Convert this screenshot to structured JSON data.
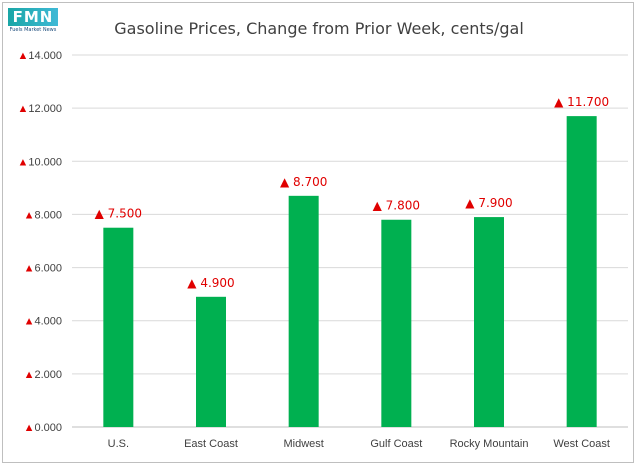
{
  "logo": {
    "letters": "FMN",
    "subtitle": "Fuels Market News"
  },
  "chart_data": {
    "type": "bar",
    "title": "Gasoline Prices, Change from Prior Week, cents/gal",
    "xlabel": "",
    "ylabel": "",
    "categories": [
      "U.S.",
      "East Coast",
      "Midwest",
      "Gulf Coast",
      "Rocky Mountain",
      "West Coast"
    ],
    "values": [
      7.5,
      4.9,
      8.7,
      7.8,
      7.9,
      11.7
    ],
    "data_labels": [
      "7.500",
      "4.900",
      "8.700",
      "7.800",
      "7.900",
      "11.700"
    ],
    "ylim": [
      0,
      14
    ],
    "yticks": [
      0,
      2,
      4,
      6,
      8,
      10,
      12,
      14
    ],
    "ytick_labels": [
      "0.000",
      "2.000",
      "4.000",
      "6.000",
      "8.000",
      "10.000",
      "12.000",
      "14.000"
    ],
    "label_prefix": "▲",
    "grid": true,
    "legend": "none",
    "colors": {
      "bar": "#00b050",
      "label": "#e00000",
      "grid": "#d9d9d9",
      "text": "#404040"
    }
  }
}
